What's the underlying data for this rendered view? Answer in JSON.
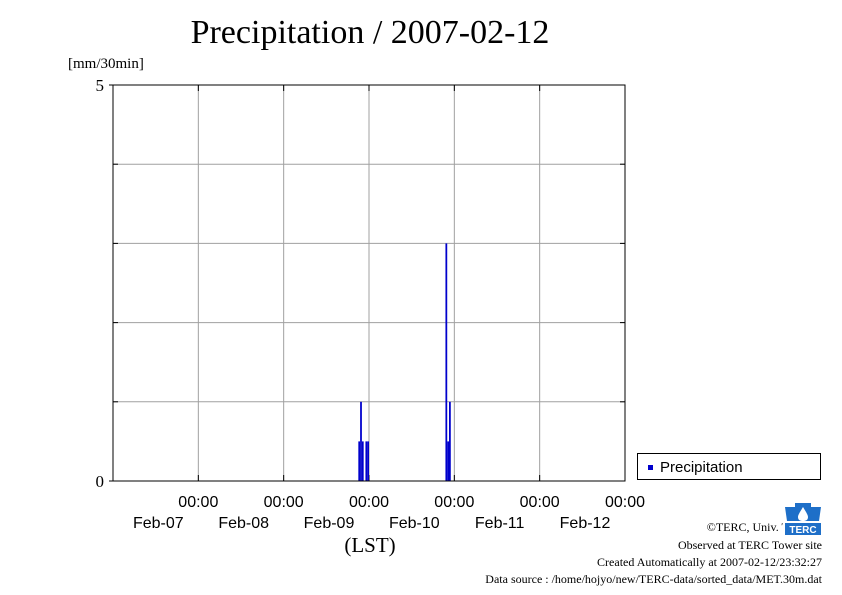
{
  "title": "Precipitation / 2007-02-12",
  "y_unit_label": "[mm/30min]",
  "x_axis_label": "(LST)",
  "legend": {
    "label": "Precipitation"
  },
  "credits": {
    "copyright": "©TERC, Univ. Tsukuba",
    "observed": "Observed at TERC Tower site",
    "created": "Created Automatically at 2007-02-12/23:32:27",
    "source": "Data source : /home/hojyo/new/TERC-data/sorted_data/MET.30m.dat"
  },
  "logo": {
    "icon": "terc-logo-icon",
    "text": "TERC"
  },
  "colors": {
    "series": "#0000cc",
    "grid": "#a0a0a0",
    "axis": "#000000"
  },
  "chart_data": {
    "type": "bar",
    "title": "Precipitation / 2007-02-12",
    "ylabel": "[mm/30min]",
    "xlabel": "(LST)",
    "ylim": [
      0,
      5
    ],
    "y_ticks": [
      {
        "value": 0,
        "label": "0"
      },
      {
        "value": 5,
        "label": "5"
      }
    ],
    "y_gridlines": [
      1,
      2,
      3,
      4
    ],
    "x_range_hours": [
      -20,
      124
    ],
    "x_ticks": [
      {
        "hour": 4,
        "time": "00:00",
        "date": "Feb-07"
      },
      {
        "hour": 28,
        "time": "00:00",
        "date": "Feb-08"
      },
      {
        "hour": 52,
        "time": "00:00",
        "date": "Feb-09"
      },
      {
        "hour": 76,
        "time": "00:00",
        "date": "Feb-10"
      },
      {
        "hour": 100,
        "time": "00:00",
        "date": "Feb-11"
      },
      {
        "hour": 124,
        "time": "00:00",
        "date": "Feb-12"
      }
    ],
    "grid": true,
    "legend_position": "right",
    "series": [
      {
        "name": "Precipitation",
        "values": [
          {
            "time": "Feb-08 21:00",
            "value": 0.5
          },
          {
            "time": "Feb-08 21:30",
            "value": 1.0
          },
          {
            "time": "Feb-08 22:00",
            "value": 0.5
          },
          {
            "time": "Feb-08 23:00",
            "value": 0.5
          },
          {
            "time": "Feb-08 23:30",
            "value": 0.5
          },
          {
            "time": "Feb-09 21:30",
            "value": 3.0
          },
          {
            "time": "Feb-09 22:00",
            "value": 0.5
          },
          {
            "time": "Feb-09 22:30",
            "value": 1.0
          }
        ]
      }
    ]
  }
}
